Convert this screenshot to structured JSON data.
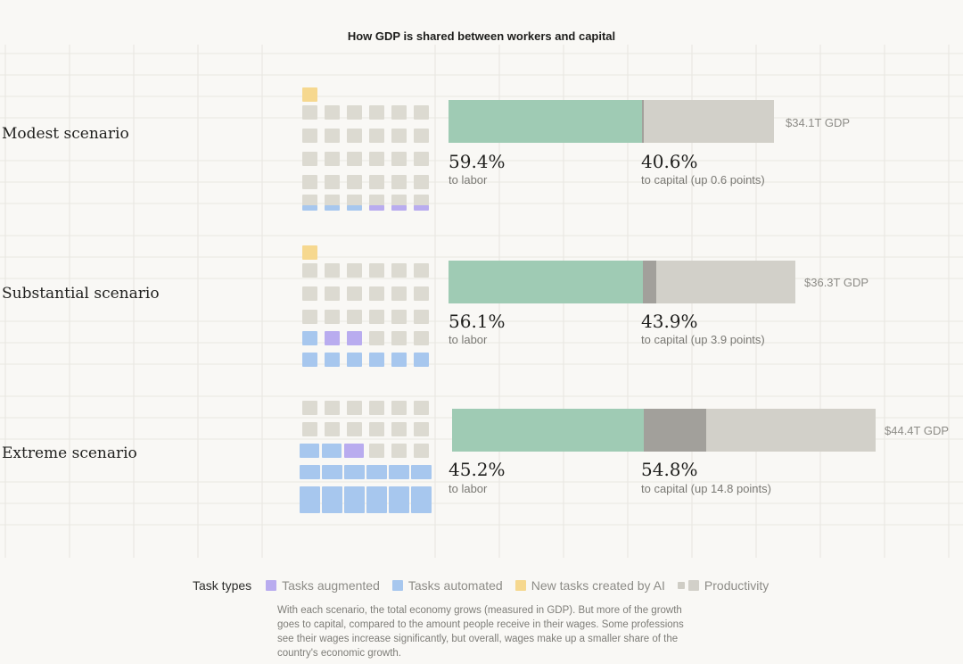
{
  "title": "How GDP is shared between workers and capital",
  "chart_data": {
    "type": "bar",
    "stacked": true,
    "orientation": "horizontal",
    "title": "How GDP is shared between workers and capital",
    "categories": [
      "Modest scenario",
      "Substantial scenario",
      "Extreme scenario"
    ],
    "gdp_trillions": [
      34.1,
      36.3,
      44.4
    ],
    "gdp_labels": [
      "$34.1T GDP",
      "$36.3T GDP",
      "$44.4T GDP"
    ],
    "series": [
      {
        "name": "to labor",
        "values": [
          59.4,
          56.1,
          45.2
        ],
        "color": "#9fcbb4"
      },
      {
        "name": "to capital",
        "values": [
          40.6,
          43.9,
          54.8
        ],
        "color": "#d2d0c9"
      }
    ],
    "capital_gain_points": [
      0.6,
      3.9,
      14.8
    ],
    "gain_color": "#a2a09b"
  },
  "scenarios": [
    {
      "label": "Modest scenario",
      "gdp": "$34.1T GDP",
      "labor_pct": "59.4%",
      "labor_sub": "to labor",
      "capital_pct": "40.6%",
      "capital_sub": "to capital (up 0.6 points)"
    },
    {
      "label": "Substantial scenario",
      "gdp": "$36.3T GDP",
      "labor_pct": "56.1%",
      "labor_sub": "to labor",
      "capital_pct": "43.9%",
      "capital_sub": "to capital (up 3.9 points)"
    },
    {
      "label": "Extreme scenario",
      "gdp": "$44.4T GDP",
      "labor_pct": "45.2%",
      "labor_sub": "to labor",
      "capital_pct": "54.8%",
      "capital_sub": "to capital (up 14.8 points)"
    }
  ],
  "legend": {
    "title": "Task types",
    "items": [
      {
        "label": "Tasks augmented",
        "color": "#b9acef"
      },
      {
        "label": "Tasks automated",
        "color": "#a7c7ee"
      },
      {
        "label": "New tasks created by AI",
        "color": "#f6d88f"
      },
      {
        "label": "Productivity",
        "color": "#dcdad1"
      }
    ]
  },
  "caption": "With each scenario, the total economy grows (measured in GDP). But more of the growth goes to capital, compared to the amount people receive in their wages. Some professions see their wages increase significantly, but overall, wages make up a smaller share of the country's economic growth."
}
